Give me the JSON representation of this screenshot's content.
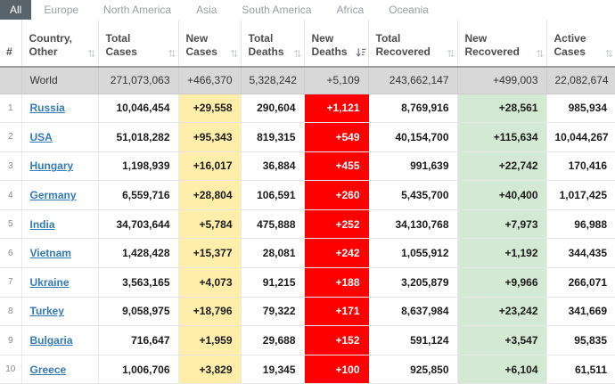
{
  "tabs": {
    "items": [
      {
        "label": "All",
        "active": true
      },
      {
        "label": "Europe",
        "active": false
      },
      {
        "label": "North America",
        "active": false
      },
      {
        "label": "Asia",
        "active": false
      },
      {
        "label": "South America",
        "active": false
      },
      {
        "label": "Africa",
        "active": false
      },
      {
        "label": "Oceania",
        "active": false
      }
    ]
  },
  "colors": {
    "active_tab_bg": "#5a636b",
    "new_cases_bg": "#ffeeaa",
    "new_deaths_bg": "#ff0000",
    "new_recovered_bg": "#d3e9d3",
    "world_row_bg": "#d8d8d8",
    "link_blue": "#337ab7"
  },
  "table": {
    "columns": [
      {
        "key": "idx",
        "label": "#",
        "sort": "none"
      },
      {
        "key": "country",
        "label": "Country, Other",
        "sort": "unsorted"
      },
      {
        "key": "total_cases",
        "label": "Total Cases",
        "sort": "unsorted"
      },
      {
        "key": "new_cases",
        "label": "New Cases",
        "sort": "unsorted"
      },
      {
        "key": "total_deaths",
        "label": "Total Deaths",
        "sort": "unsorted"
      },
      {
        "key": "new_deaths",
        "label": "New Deaths",
        "sort": "desc"
      },
      {
        "key": "total_recovered",
        "label": "Total Recovered",
        "sort": "unsorted"
      },
      {
        "key": "new_recovered",
        "label": "New Recovered",
        "sort": "unsorted"
      },
      {
        "key": "active_cases",
        "label": "Active Cases",
        "sort": "unsorted"
      }
    ],
    "world_row": {
      "idx": "",
      "country": "World",
      "total_cases": "271,073,063",
      "new_cases": "+466,370",
      "total_deaths": "5,328,242",
      "new_deaths": "+5,109",
      "total_recovered": "243,662,147",
      "new_recovered": "+499,003",
      "active_cases": "22,082,674"
    },
    "rows": [
      {
        "idx": "1",
        "country": "Russia",
        "total_cases": "10,046,454",
        "new_cases": "+29,558",
        "total_deaths": "290,604",
        "new_deaths": "+1,121",
        "total_recovered": "8,769,916",
        "new_recovered": "+28,561",
        "active_cases": "985,934"
      },
      {
        "idx": "2",
        "country": "USA",
        "total_cases": "51,018,282",
        "new_cases": "+95,343",
        "total_deaths": "819,315",
        "new_deaths": "+549",
        "total_recovered": "40,154,700",
        "new_recovered": "+115,634",
        "active_cases": "10,044,267"
      },
      {
        "idx": "3",
        "country": "Hungary",
        "total_cases": "1,198,939",
        "new_cases": "+16,017",
        "total_deaths": "36,884",
        "new_deaths": "+455",
        "total_recovered": "991,639",
        "new_recovered": "+22,742",
        "active_cases": "170,416"
      },
      {
        "idx": "4",
        "country": "Germany",
        "total_cases": "6,559,716",
        "new_cases": "+28,804",
        "total_deaths": "106,591",
        "new_deaths": "+260",
        "total_recovered": "5,435,700",
        "new_recovered": "+40,400",
        "active_cases": "1,017,425"
      },
      {
        "idx": "5",
        "country": "India",
        "total_cases": "34,703,644",
        "new_cases": "+5,784",
        "total_deaths": "475,888",
        "new_deaths": "+252",
        "total_recovered": "34,130,768",
        "new_recovered": "+7,973",
        "active_cases": "96,988"
      },
      {
        "idx": "6",
        "country": "Vietnam",
        "total_cases": "1,428,428",
        "new_cases": "+15,377",
        "total_deaths": "28,081",
        "new_deaths": "+242",
        "total_recovered": "1,055,912",
        "new_recovered": "+1,192",
        "active_cases": "344,435"
      },
      {
        "idx": "7",
        "country": "Ukraine",
        "total_cases": "3,563,165",
        "new_cases": "+4,073",
        "total_deaths": "91,215",
        "new_deaths": "+188",
        "total_recovered": "3,205,879",
        "new_recovered": "+9,966",
        "active_cases": "266,071"
      },
      {
        "idx": "8",
        "country": "Turkey",
        "total_cases": "9,058,975",
        "new_cases": "+18,796",
        "total_deaths": "79,322",
        "new_deaths": "+171",
        "total_recovered": "8,637,984",
        "new_recovered": "+23,242",
        "active_cases": "341,669"
      },
      {
        "idx": "9",
        "country": "Bulgaria",
        "total_cases": "716,647",
        "new_cases": "+1,959",
        "total_deaths": "29,688",
        "new_deaths": "+152",
        "total_recovered": "591,124",
        "new_recovered": "+3,547",
        "active_cases": "95,835"
      },
      {
        "idx": "10",
        "country": "Greece",
        "total_cases": "1,006,706",
        "new_cases": "+3,829",
        "total_deaths": "19,345",
        "new_deaths": "+100",
        "total_recovered": "925,850",
        "new_recovered": "+6,104",
        "active_cases": "61,511"
      }
    ]
  }
}
